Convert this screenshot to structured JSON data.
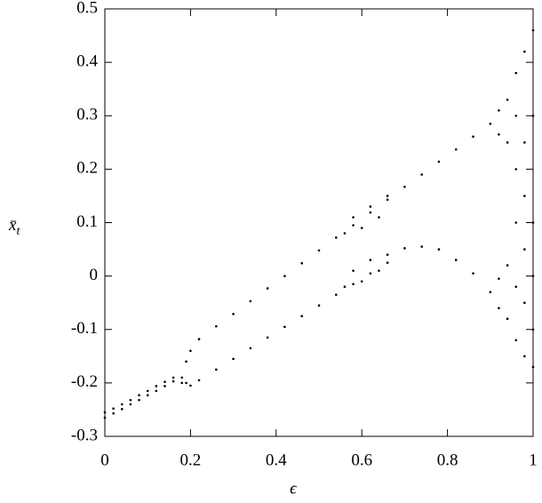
{
  "chart_data": {
    "type": "scatter",
    "xlabel": "ϵ",
    "ylabel": "x̄",
    "ylabel_subscript": "t",
    "xlim": [
      0,
      1
    ],
    "xticks": [
      0,
      0.2,
      0.4,
      0.6,
      0.8,
      1
    ],
    "ylim": [
      -0.3,
      0.5
    ],
    "yticks": [
      -0.3,
      -0.2,
      -0.1,
      0,
      0.1,
      0.2,
      0.3,
      0.4,
      0.5
    ],
    "color": "#000000",
    "x": [
      0,
      0,
      0.02,
      0.02,
      0.04,
      0.04,
      0.06,
      0.06,
      0.08,
      0.08,
      0.1,
      0.1,
      0.12,
      0.12,
      0.14,
      0.14,
      0.16,
      0.16,
      0.18,
      0.18,
      0.19,
      0.19,
      0.2,
      0.2,
      0.22,
      0.26,
      0.3,
      0.34,
      0.38,
      0.42,
      0.46,
      0.5,
      0.54,
      0.58,
      0.62,
      0.66,
      0.7,
      0.74,
      0.78,
      0.82,
      0.86,
      0.9,
      0.22,
      0.26,
      0.3,
      0.34,
      0.38,
      0.42,
      0.46,
      0.5,
      0.54,
      0.58,
      0.62,
      0.66,
      0.7,
      0.74,
      0.78,
      0.82,
      0.86,
      0.9,
      0.56,
      0.58,
      0.6,
      0.62,
      0.64,
      0.66,
      0.56,
      0.58,
      0.6,
      0.62,
      0.64,
      0.66,
      0.92,
      0.92,
      0.92,
      0.92,
      0.94,
      0.94,
      0.94,
      0.94,
      0.96,
      0.96,
      0.96,
      0.96,
      0.96,
      0.96,
      0.98,
      0.98,
      0.98,
      0.98,
      0.98,
      0.98,
      1,
      1,
      1,
      1,
      1,
      1
    ],
    "values": [
      -0.265,
      -0.255,
      -0.257,
      -0.248,
      -0.249,
      -0.24,
      -0.24,
      -0.232,
      -0.232,
      -0.223,
      -0.223,
      -0.215,
      -0.215,
      -0.206,
      -0.206,
      -0.198,
      -0.197,
      -0.19,
      -0.19,
      -0.2,
      -0.16,
      -0.2,
      -0.14,
      -0.205,
      -0.118,
      -0.094,
      -0.071,
      -0.047,
      -0.023,
      0,
      0.024,
      0.048,
      0.072,
      0.095,
      0.119,
      0.143,
      0.167,
      0.19,
      0.214,
      0.237,
      0.261,
      0.285,
      -0.195,
      -0.175,
      -0.155,
      -0.135,
      -0.115,
      -0.095,
      -0.075,
      -0.055,
      -0.035,
      -0.015,
      0.005,
      0.025,
      0.052,
      0.055,
      0.05,
      0.03,
      0.005,
      -0.03,
      0.08,
      0.11,
      0.09,
      0.13,
      0.11,
      0.15,
      -0.02,
      0.01,
      -0.01,
      0.03,
      0.01,
      0.04,
      0.31,
      0.265,
      -0.005,
      -0.06,
      0.33,
      0.25,
      0.02,
      -0.08,
      0.38,
      0.2,
      0.1,
      -0.12,
      0.3,
      -0.02,
      0.42,
      0.15,
      0.05,
      -0.15,
      0.25,
      -0.05,
      0.46,
      0.1,
      -0.17,
      0.3,
      0,
      -0.1
    ]
  }
}
